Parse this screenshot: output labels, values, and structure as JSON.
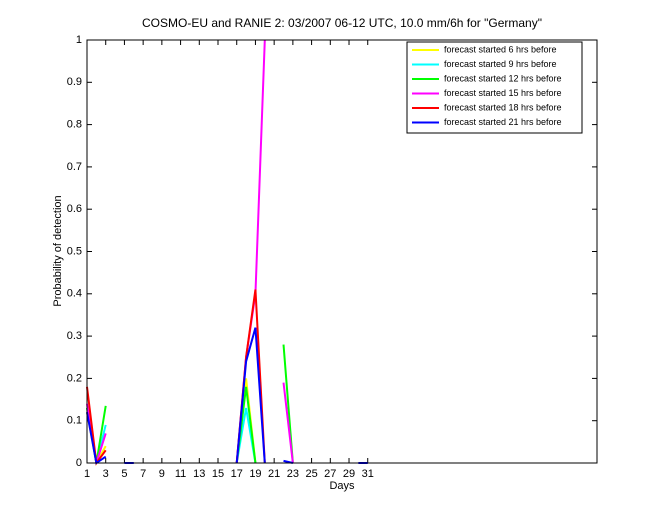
{
  "chart_data": {
    "type": "line",
    "title": "COSMO-EU and RANIE 2: 03/2007 06-12 UTC, 10.0 mm/6h for \"Germany\"",
    "xlabel": "Days",
    "ylabel": "Probability of detection",
    "x": [
      1,
      2,
      3,
      4,
      5,
      6,
      7,
      8,
      9,
      10,
      11,
      12,
      13,
      14,
      15,
      16,
      17,
      18,
      19,
      20,
      21,
      22,
      23,
      24,
      25,
      26,
      27,
      28,
      29,
      30,
      31
    ],
    "xlim": [
      1,
      55.5
    ],
    "xticks": [
      1,
      3,
      5,
      7,
      9,
      11,
      13,
      15,
      17,
      19,
      21,
      23,
      25,
      27,
      29,
      31
    ],
    "ylim": [
      0,
      1
    ],
    "yticks": [
      0,
      0.1,
      0.2,
      0.3,
      0.4,
      0.5,
      0.6,
      0.7,
      0.8,
      0.9,
      1
    ],
    "legend": "upper right",
    "series": [
      {
        "name": "forecast started 6 hrs before",
        "color": "#ffff00",
        "values": [
          0.12,
          0,
          0.04,
          null,
          null,
          null,
          null,
          null,
          null,
          null,
          null,
          null,
          null,
          null,
          null,
          null,
          0,
          0.2,
          0,
          null,
          null,
          null,
          null,
          null,
          null,
          null,
          null,
          null,
          null,
          null,
          null
        ]
      },
      {
        "name": "forecast started 9 hrs before",
        "color": "#00ffff",
        "values": [
          0.13,
          0,
          0.09,
          null,
          null,
          null,
          null,
          null,
          null,
          null,
          null,
          null,
          null,
          null,
          null,
          null,
          0,
          0.13,
          0,
          null,
          null,
          null,
          null,
          null,
          null,
          null,
          null,
          null,
          null,
          null,
          null
        ]
      },
      {
        "name": "forecast started 12 hrs before",
        "color": "#00ff00",
        "values": [
          0.13,
          0,
          0.135,
          null,
          null,
          null,
          null,
          null,
          null,
          null,
          null,
          null,
          null,
          null,
          null,
          null,
          0,
          0.18,
          0,
          null,
          null,
          0.28,
          0,
          null,
          null,
          null,
          null,
          null,
          null,
          null,
          null
        ]
      },
      {
        "name": "forecast started 15 hrs before",
        "color": "#ff00ff",
        "values": [
          0.14,
          0,
          0.07,
          null,
          null,
          null,
          null,
          null,
          null,
          null,
          null,
          null,
          null,
          null,
          null,
          null,
          0,
          0.25,
          0.4,
          1,
          null,
          0.19,
          0,
          null,
          null,
          null,
          null,
          null,
          null,
          null,
          null
        ]
      },
      {
        "name": "forecast started 18 hrs before",
        "color": "#ff0000",
        "values": [
          0.18,
          0,
          0.03,
          null,
          null,
          null,
          null,
          null,
          null,
          null,
          null,
          null,
          null,
          null,
          null,
          null,
          0,
          0.25,
          0.41,
          0,
          null,
          null,
          null,
          null,
          null,
          null,
          null,
          null,
          null,
          null,
          null
        ]
      },
      {
        "name": "forecast started 21 hrs before",
        "color": "#0000ff",
        "values": [
          0.12,
          0,
          0.015,
          null,
          0,
          0,
          null,
          null,
          null,
          null,
          null,
          null,
          null,
          null,
          null,
          null,
          0,
          0.24,
          0.32,
          0,
          null,
          0.005,
          0,
          null,
          null,
          null,
          null,
          null,
          null,
          0,
          0
        ]
      }
    ]
  }
}
